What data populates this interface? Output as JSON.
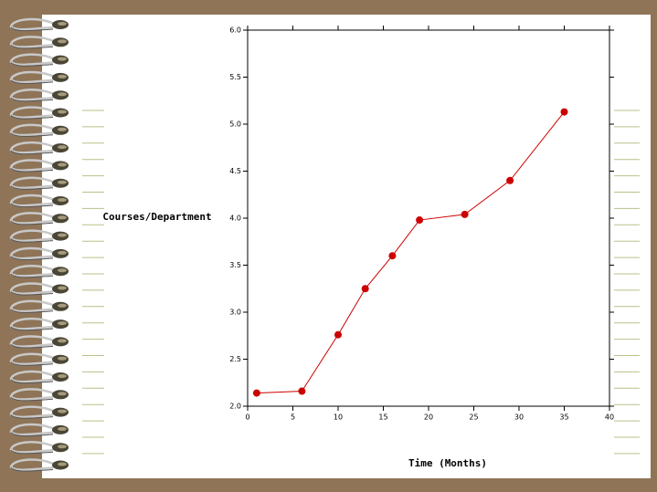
{
  "chart_data": {
    "type": "line",
    "x_label": "Time (Months)",
    "y_label": "Courses/Department",
    "x": [
      1,
      6,
      10,
      13,
      16,
      19,
      24,
      29,
      35
    ],
    "series": [
      {
        "color": "#cc0000",
        "values": [
          2.14,
          2.16,
          2.76,
          3.25,
          3.6,
          3.98,
          4.04,
          4.4,
          5.13
        ]
      }
    ],
    "xlim": [
      0,
      40
    ],
    "xticks": [
      0,
      5,
      10,
      15,
      20,
      25,
      30,
      35,
      40
    ],
    "ylim": [
      2,
      6
    ],
    "yticks": [
      {
        "value": 2,
        "label": "2.0"
      },
      {
        "value": 2.5,
        "label": "2.5"
      },
      {
        "value": 3,
        "label": "3.0"
      },
      {
        "value": 3.5,
        "label": "3.5"
      },
      {
        "value": 4,
        "label": "4.0"
      },
      {
        "value": 4.5,
        "label": "4.5"
      },
      {
        "value": 5,
        "label": "5.0"
      },
      {
        "value": 5.5,
        "label": "5.5"
      },
      {
        "value": 6,
        "label": "6.0"
      }
    ],
    "grid": false
  }
}
